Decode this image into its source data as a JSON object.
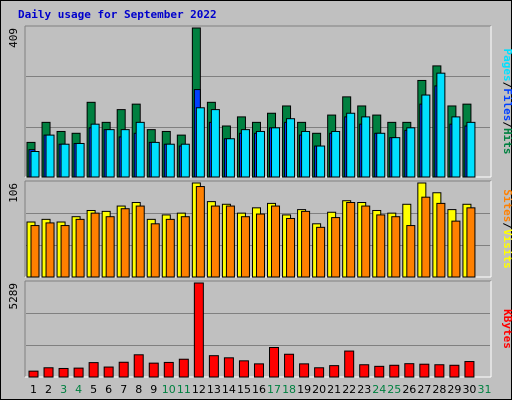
{
  "title": "Daily usage for September 2022",
  "colors": {
    "hits": "#008040",
    "files": "#0040ff",
    "pages": "#00e0ff",
    "visits": "#ffff00",
    "sites": "#ff8000",
    "kbytes": "#ff0000",
    "weekend_day": "#008040",
    "weekday": "#000000",
    "bg": "#c0c0c0",
    "title": "#0000cc"
  },
  "chart_data": [
    {
      "type": "bar",
      "panel": "hits-files-pages",
      "categories": [
        "1",
        "2",
        "3",
        "4",
        "5",
        "6",
        "7",
        "8",
        "9",
        "10",
        "11",
        "12",
        "13",
        "14",
        "15",
        "16",
        "17",
        "18",
        "19",
        "20",
        "21",
        "22",
        "23",
        "24",
        "25",
        "26",
        "27",
        "28",
        "29",
        "30",
        "31"
      ],
      "max_label": "409",
      "ylim": [
        0,
        409
      ],
      "series": [
        {
          "name": "Hits",
          "values": [
            95,
            150,
            125,
            120,
            205,
            150,
            185,
            200,
            130,
            125,
            115,
            409,
            205,
            140,
            165,
            150,
            175,
            195,
            150,
            120,
            170,
            220,
            195,
            170,
            150,
            150,
            265,
            305,
            195,
            200,
            0
          ]
        },
        {
          "name": "Files",
          "values": [
            75,
            115,
            90,
            92,
            135,
            130,
            110,
            120,
            95,
            90,
            85,
            240,
            150,
            105,
            120,
            120,
            135,
            150,
            115,
            85,
            120,
            165,
            145,
            120,
            108,
            128,
            200,
            250,
            145,
            140,
            0
          ]
        },
        {
          "name": "Pages",
          "values": [
            70,
            115,
            90,
            92,
            145,
            130,
            130,
            150,
            95,
            90,
            90,
            190,
            185,
            105,
            130,
            125,
            135,
            160,
            125,
            85,
            125,
            175,
            165,
            120,
            108,
            135,
            225,
            285,
            165,
            150,
            0
          ]
        }
      ]
    },
    {
      "type": "bar",
      "panel": "visits-sites",
      "categories": [
        "1",
        "2",
        "3",
        "4",
        "5",
        "6",
        "7",
        "8",
        "9",
        "10",
        "11",
        "12",
        "13",
        "14",
        "15",
        "16",
        "17",
        "18",
        "19",
        "20",
        "21",
        "22",
        "23",
        "24",
        "25",
        "26",
        "27",
        "28",
        "29",
        "30",
        "31"
      ],
      "max_label": "106",
      "ylim": [
        0,
        106
      ],
      "series": [
        {
          "name": "Visits",
          "values": [
            62,
            65,
            62,
            68,
            75,
            74,
            80,
            84,
            65,
            70,
            72,
            106,
            85,
            82,
            72,
            78,
            83,
            70,
            76,
            60,
            73,
            86,
            84,
            75,
            72,
            82,
            106,
            95,
            76,
            82,
            0
          ]
        },
        {
          "name": "Sites",
          "values": [
            58,
            61,
            58,
            65,
            72,
            68,
            77,
            80,
            60,
            65,
            68,
            102,
            80,
            80,
            68,
            71,
            80,
            66,
            74,
            56,
            67,
            84,
            80,
            70,
            68,
            58,
            90,
            83,
            63,
            78,
            0
          ]
        }
      ]
    },
    {
      "type": "bar",
      "panel": "kbytes",
      "categories": [
        "1",
        "2",
        "3",
        "4",
        "5",
        "6",
        "7",
        "8",
        "9",
        "10",
        "11",
        "12",
        "13",
        "14",
        "15",
        "16",
        "17",
        "18",
        "19",
        "20",
        "21",
        "22",
        "23",
        "24",
        "25",
        "26",
        "27",
        "28",
        "29",
        "30",
        "31"
      ],
      "max_label": "5289",
      "ylim": [
        0,
        5289
      ],
      "series": [
        {
          "name": "KBytes",
          "values": [
            330,
            520,
            480,
            500,
            810,
            560,
            830,
            1250,
            780,
            820,
            1000,
            5289,
            1200,
            1080,
            910,
            740,
            1660,
            1280,
            740,
            520,
            640,
            1460,
            690,
            600,
            660,
            750,
            720,
            690,
            660,
            870,
            0
          ]
        }
      ]
    }
  ],
  "legend": {
    "top": [
      "Pages",
      "/",
      "Files",
      "/",
      "Hits"
    ],
    "middle": [
      "Sites",
      "/",
      "Visits"
    ],
    "bottom": [
      "KBytes"
    ]
  }
}
